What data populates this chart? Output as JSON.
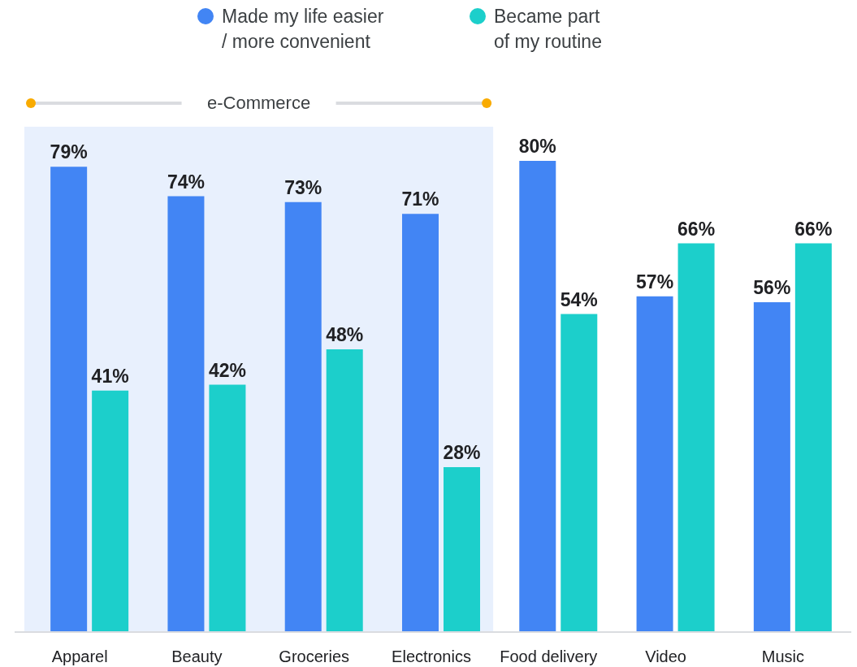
{
  "chart_data": {
    "type": "bar",
    "categories": [
      "Apparel",
      "Beauty",
      "Groceries",
      "Electronics",
      "Food delivery",
      "Video",
      "Music"
    ],
    "series": [
      {
        "name": "Made my life easier / more convenient",
        "color": "#4285f4",
        "values": [
          79,
          74,
          73,
          71,
          80,
          57,
          56
        ],
        "value_labels": [
          "79%",
          "74%",
          "73%",
          "71%",
          "80%",
          "57%",
          "56%"
        ]
      },
      {
        "name": "Became part of my routine",
        "color": "#1ccfcb",
        "values": [
          41,
          42,
          48,
          28,
          54,
          66,
          66
        ],
        "value_labels": [
          "41%",
          "42%",
          "48%",
          "28%",
          "54%",
          "66%",
          "66%"
        ]
      }
    ],
    "bands": [
      {
        "axis": "x",
        "from": "Apparel",
        "to": "Electronics",
        "label": "e-Commerce",
        "color": "#e8f0fd"
      }
    ],
    "legend": "top"
  }
}
